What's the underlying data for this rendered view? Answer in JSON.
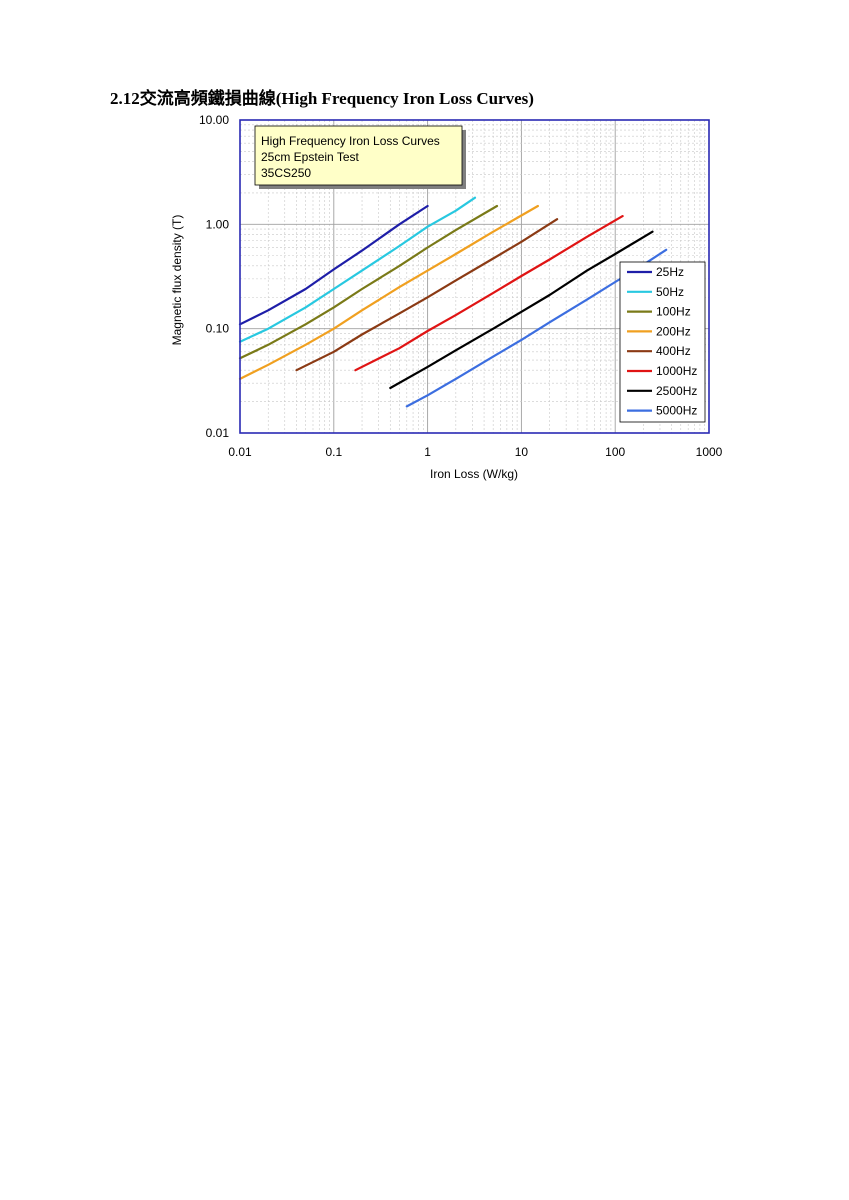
{
  "page": {
    "title": "2.12交流高頻鐵損曲線(High Frequency Iron Loss Curves)"
  },
  "chart_data": {
    "type": "line",
    "note_lines": [
      "High Frequency Iron Loss Curves",
      "25cm Epstein Test",
      "35CS250"
    ],
    "xlabel": "Iron Loss (W/kg)",
    "ylabel": "Magnetic flux density (T)",
    "x_scale": "log",
    "y_scale": "log",
    "xlim": [
      0.01,
      1000
    ],
    "ylim": [
      0.01,
      10
    ],
    "x_ticks": [
      {
        "value": 0.01,
        "label": "0.01"
      },
      {
        "value": 0.1,
        "label": "0.1"
      },
      {
        "value": 1,
        "label": "1"
      },
      {
        "value": 10,
        "label": "10"
      },
      {
        "value": 100,
        "label": "100"
      },
      {
        "value": 1000,
        "label": "1000"
      }
    ],
    "y_ticks": [
      {
        "value": 0.01,
        "label": "0.01"
      },
      {
        "value": 0.1,
        "label": "0.10"
      },
      {
        "value": 1,
        "label": "1.00"
      },
      {
        "value": 10,
        "label": "10.00"
      }
    ],
    "grid": true,
    "legend_position": "bottom-right",
    "colors": {
      "frame": "#2a2ab4",
      "grid_major": "#a0a0a0",
      "grid_minor": "#c8c8c8",
      "note_bg": "#ffffc8"
    },
    "series": [
      {
        "name": "25Hz",
        "color": "#1e1ea8",
        "points": [
          [
            0.01,
            0.11
          ],
          [
            0.02,
            0.15
          ],
          [
            0.05,
            0.24
          ],
          [
            0.1,
            0.37
          ],
          [
            0.2,
            0.56
          ],
          [
            0.5,
            1.0
          ],
          [
            1.0,
            1.5
          ]
        ]
      },
      {
        "name": "50Hz",
        "color": "#28c8e0",
        "points": [
          [
            0.01,
            0.075
          ],
          [
            0.02,
            0.1
          ],
          [
            0.05,
            0.16
          ],
          [
            0.1,
            0.24
          ],
          [
            0.2,
            0.36
          ],
          [
            0.5,
            0.62
          ],
          [
            1.0,
            0.95
          ],
          [
            2.0,
            1.35
          ],
          [
            3.2,
            1.8
          ]
        ]
      },
      {
        "name": "100Hz",
        "color": "#7a7a18",
        "points": [
          [
            0.01,
            0.052
          ],
          [
            0.02,
            0.07
          ],
          [
            0.05,
            0.11
          ],
          [
            0.1,
            0.16
          ],
          [
            0.2,
            0.24
          ],
          [
            0.5,
            0.4
          ],
          [
            1.0,
            0.6
          ],
          [
            2.0,
            0.88
          ],
          [
            5.5,
            1.5
          ]
        ]
      },
      {
        "name": "200Hz",
        "color": "#f0a020",
        "points": [
          [
            0.01,
            0.033
          ],
          [
            0.02,
            0.045
          ],
          [
            0.05,
            0.07
          ],
          [
            0.1,
            0.1
          ],
          [
            0.2,
            0.15
          ],
          [
            0.5,
            0.25
          ],
          [
            1.0,
            0.36
          ],
          [
            2.0,
            0.52
          ],
          [
            5.0,
            0.85
          ],
          [
            15.0,
            1.5
          ]
        ]
      },
      {
        "name": "400Hz",
        "color": "#8b3a14",
        "points": [
          [
            0.04,
            0.04
          ],
          [
            0.1,
            0.06
          ],
          [
            0.2,
            0.088
          ],
          [
            0.5,
            0.14
          ],
          [
            1.0,
            0.2
          ],
          [
            2.0,
            0.29
          ],
          [
            5.0,
            0.47
          ],
          [
            10.0,
            0.68
          ],
          [
            24.0,
            1.12
          ]
        ]
      },
      {
        "name": "1000Hz",
        "color": "#e01414",
        "points": [
          [
            0.17,
            0.04
          ],
          [
            0.5,
            0.065
          ],
          [
            1.0,
            0.095
          ],
          [
            2.0,
            0.135
          ],
          [
            5.0,
            0.22
          ],
          [
            10.0,
            0.32
          ],
          [
            20.0,
            0.46
          ],
          [
            50.0,
            0.76
          ],
          [
            120.0,
            1.2
          ]
        ]
      },
      {
        "name": "2500Hz",
        "color": "#000000",
        "points": [
          [
            0.4,
            0.027
          ],
          [
            1.0,
            0.043
          ],
          [
            2.0,
            0.062
          ],
          [
            5.0,
            0.1
          ],
          [
            10.0,
            0.145
          ],
          [
            20.0,
            0.21
          ],
          [
            50.0,
            0.36
          ],
          [
            100.0,
            0.52
          ],
          [
            250.0,
            0.85
          ]
        ]
      },
      {
        "name": "5000Hz",
        "color": "#3c6ee0",
        "points": [
          [
            0.6,
            0.018
          ],
          [
            1.0,
            0.023
          ],
          [
            2.0,
            0.033
          ],
          [
            5.0,
            0.054
          ],
          [
            10.0,
            0.078
          ],
          [
            20.0,
            0.115
          ],
          [
            50.0,
            0.19
          ],
          [
            100.0,
            0.28
          ],
          [
            200.0,
            0.41
          ],
          [
            350.0,
            0.57
          ]
        ]
      }
    ]
  }
}
